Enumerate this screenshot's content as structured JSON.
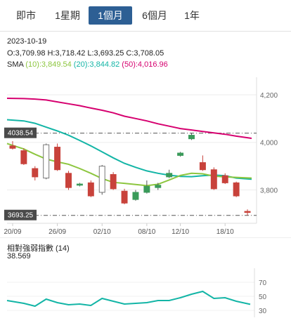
{
  "tabs": [
    {
      "label": "即市",
      "active": false
    },
    {
      "label": "1星期",
      "active": false
    },
    {
      "label": "1個月",
      "active": true
    },
    {
      "label": "6個月",
      "active": false
    },
    {
      "label": "1年",
      "active": false
    }
  ],
  "info": {
    "date": "2023-10-19",
    "ohlc": "O:3,709.98  H:3,718.42  L:3,693.25  C:3,708.05",
    "sma_label": "SMA",
    "sma10": "(10):3,849.54",
    "sma20": "(20):3,844.82",
    "sma50": "(50):4,016.96"
  },
  "colors": {
    "tab_active": "#2d5f94",
    "sma10": "#8dc63f",
    "sma20": "#13b5a6",
    "sma50": "#d6006f",
    "down": "#c8423b",
    "up": "#3a9b5a",
    "rsi": "#13b5a6",
    "marker": "#555555"
  },
  "chart_data": [
    {
      "type": "candlestick",
      "x_ticks": [
        "20/09",
        "26/09",
        "02/10",
        "08/10",
        "12/10",
        "18/10"
      ],
      "y_ticks": [
        4200,
        4000,
        3800
      ],
      "y_tick_labels": [
        "4,200",
        "4,000",
        "3,800"
      ],
      "ylim": [
        3660,
        4250
      ],
      "markers": [
        {
          "label": "4038.54",
          "value": 4038.54
        },
        {
          "label": "3693.25",
          "value": 3693.25
        }
      ],
      "candles": [
        {
          "o": 3985,
          "h": 4005,
          "l": 3970,
          "c": 3975
        },
        {
          "o": 3965,
          "h": 3975,
          "l": 3905,
          "c": 3910
        },
        {
          "o": 3890,
          "h": 3900,
          "l": 3840,
          "c": 3855
        },
        {
          "o": 3850,
          "h": 3995,
          "l": 3845,
          "c": 3990
        },
        {
          "o": 3980,
          "h": 3995,
          "l": 3880,
          "c": 3885
        },
        {
          "o": 3870,
          "h": 3880,
          "l": 3800,
          "c": 3810
        },
        {
          "o": 3820,
          "h": 3830,
          "l": 3815,
          "c": 3825
        },
        {
          "o": 3830,
          "h": 3840,
          "l": 3770,
          "c": 3775
        },
        {
          "o": 3790,
          "h": 3905,
          "l": 3780,
          "c": 3900
        },
        {
          "o": 3865,
          "h": 3875,
          "l": 3800,
          "c": 3805
        },
        {
          "o": 3795,
          "h": 3805,
          "l": 3740,
          "c": 3745
        },
        {
          "o": 3760,
          "h": 3800,
          "l": 3755,
          "c": 3790
        },
        {
          "o": 3790,
          "h": 3840,
          "l": 3785,
          "c": 3815
        },
        {
          "o": 3810,
          "h": 3830,
          "l": 3800,
          "c": 3820
        },
        {
          "o": 3855,
          "h": 3885,
          "l": 3850,
          "c": 3870
        },
        {
          "o": 3945,
          "h": 3960,
          "l": 3940,
          "c": 3955
        },
        {
          "o": 4015,
          "h": 4040,
          "l": 4010,
          "c": 4030
        },
        {
          "o": 3915,
          "h": 3945,
          "l": 3880,
          "c": 3885
        },
        {
          "o": 3885,
          "h": 3895,
          "l": 3800,
          "c": 3805
        },
        {
          "o": 3860,
          "h": 3870,
          "l": 3825,
          "c": 3830
        },
        {
          "o": 3830,
          "h": 3835,
          "l": 3770,
          "c": 3775
        },
        {
          "o": 3709.98,
          "h": 3718.42,
          "l": 3693.25,
          "c": 3708.05
        }
      ],
      "series": [
        {
          "name": "SMA (50)",
          "values": [
            4185,
            4184,
            4182,
            4178,
            4170,
            4162,
            4154,
            4144,
            4135,
            4124,
            4110,
            4100,
            4090,
            4078,
            4068,
            4058,
            4052,
            4046,
            4040,
            4034,
            4026,
            4017
          ]
        },
        {
          "name": "SMA (20)",
          "values": [
            4095,
            4090,
            4080,
            4064,
            4048,
            4030,
            4008,
            3985,
            3960,
            3935,
            3912,
            3895,
            3880,
            3870,
            3862,
            3857,
            3856,
            3860,
            3863,
            3860,
            3850,
            3845
          ]
        },
        {
          "name": "SMA (10)",
          "values": [
            3995,
            3972,
            3950,
            3930,
            3918,
            3908,
            3890,
            3870,
            3848,
            3832,
            3828,
            3823,
            3818,
            3824,
            3842,
            3861,
            3870,
            3868,
            3858,
            3855,
            3853,
            3850
          ]
        }
      ]
    },
    {
      "type": "line",
      "title": "相對強弱指數 (14)",
      "current_value": "38.569",
      "y_ticks": [
        70,
        50,
        30
      ],
      "ylim": [
        20,
        90
      ],
      "series": [
        {
          "name": "相對強弱指數 (14)",
          "values": [
            44,
            40,
            36,
            46,
            41,
            38,
            39,
            37,
            47,
            43,
            39,
            40,
            41,
            44,
            44,
            48,
            53,
            57,
            47,
            48,
            43,
            38.6
          ]
        }
      ]
    }
  ]
}
